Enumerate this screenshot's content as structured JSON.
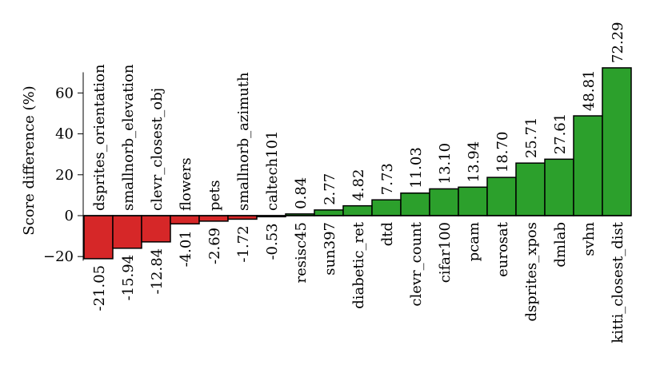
{
  "chart_data": {
    "type": "bar",
    "ylabel": "Score difference (%)",
    "ylim": [
      -22,
      74
    ],
    "yticks": [
      -20,
      0,
      20,
      40,
      60
    ],
    "ytick_labels": [
      "−20",
      "0",
      "20",
      "40",
      "60"
    ],
    "colors": {
      "negative": "#d62728",
      "positive": "#2ca02c",
      "edge": "#000000"
    },
    "bars": [
      {
        "category": "dsprites_orientation",
        "value": -21.05,
        "value_label": "-21.05"
      },
      {
        "category": "smallnorb_elevation",
        "value": -15.94,
        "value_label": "-15.94"
      },
      {
        "category": "clevr_closest_obj",
        "value": -12.84,
        "value_label": "-12.84"
      },
      {
        "category": "flowers",
        "value": -4.01,
        "value_label": "-4.01"
      },
      {
        "category": "pets",
        "value": -2.69,
        "value_label": "-2.69"
      },
      {
        "category": "smallnorb_azimuth",
        "value": -1.72,
        "value_label": "-1.72"
      },
      {
        "category": "caltech101",
        "value": -0.53,
        "value_label": "-0.53"
      },
      {
        "category": "resisc45",
        "value": 0.84,
        "value_label": "0.84"
      },
      {
        "category": "sun397",
        "value": 2.77,
        "value_label": "2.77"
      },
      {
        "category": "diabetic_ret",
        "value": 4.82,
        "value_label": "4.82"
      },
      {
        "category": "dtd",
        "value": 7.73,
        "value_label": "7.73"
      },
      {
        "category": "clevr_count",
        "value": 11.03,
        "value_label": "11.03"
      },
      {
        "category": "cifar100",
        "value": 13.1,
        "value_label": "13.10"
      },
      {
        "category": "pcam",
        "value": 13.94,
        "value_label": "13.94"
      },
      {
        "category": "eurosat",
        "value": 18.7,
        "value_label": "18.70"
      },
      {
        "category": "dsprites_xpos",
        "value": 25.71,
        "value_label": "25.71"
      },
      {
        "category": "dmlab",
        "value": 27.61,
        "value_label": "27.61"
      },
      {
        "category": "svhn",
        "value": 48.81,
        "value_label": "48.81"
      },
      {
        "category": "kitti_closest_dist",
        "value": 72.29,
        "value_label": "72.29"
      }
    ]
  }
}
